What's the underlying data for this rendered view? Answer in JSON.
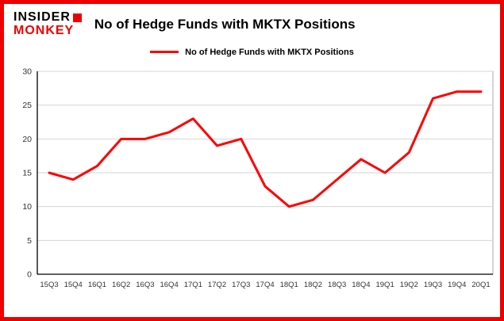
{
  "header": {
    "logo": {
      "line1": "INSIDER",
      "line2": "MONKEY"
    },
    "title": "No of Hedge Funds with MKTX Positions"
  },
  "legend": {
    "label": "No of Hedge Funds with MKTX Positions"
  },
  "chart_data": {
    "type": "line",
    "title": "No of Hedge Funds with MKTX Positions",
    "categories": [
      "15Q3",
      "15Q4",
      "16Q1",
      "16Q2",
      "16Q3",
      "16Q4",
      "17Q1",
      "17Q2",
      "17Q3",
      "17Q4",
      "18Q1",
      "18Q2",
      "18Q3",
      "18Q4",
      "19Q1",
      "19Q2",
      "19Q3",
      "19Q4",
      "20Q1"
    ],
    "series": [
      {
        "name": "No of Hedge Funds with MKTX Positions",
        "values": [
          15,
          14,
          16,
          20,
          20,
          21,
          23,
          19,
          20,
          13,
          10,
          11,
          14,
          17,
          15,
          18,
          26,
          27,
          27
        ]
      }
    ],
    "xlabel": "",
    "ylabel": "",
    "ylim": [
      0,
      30
    ],
    "yticks": [
      0,
      5,
      10,
      15,
      20,
      25,
      30
    ],
    "grid": true,
    "legend_position": "top"
  },
  "colors": {
    "frame": "#ee0000",
    "line": "#fe0000",
    "grid": "#d6d6d6",
    "plot_border": "#ababab",
    "axis": "#000000",
    "tick_text": "#333333"
  }
}
